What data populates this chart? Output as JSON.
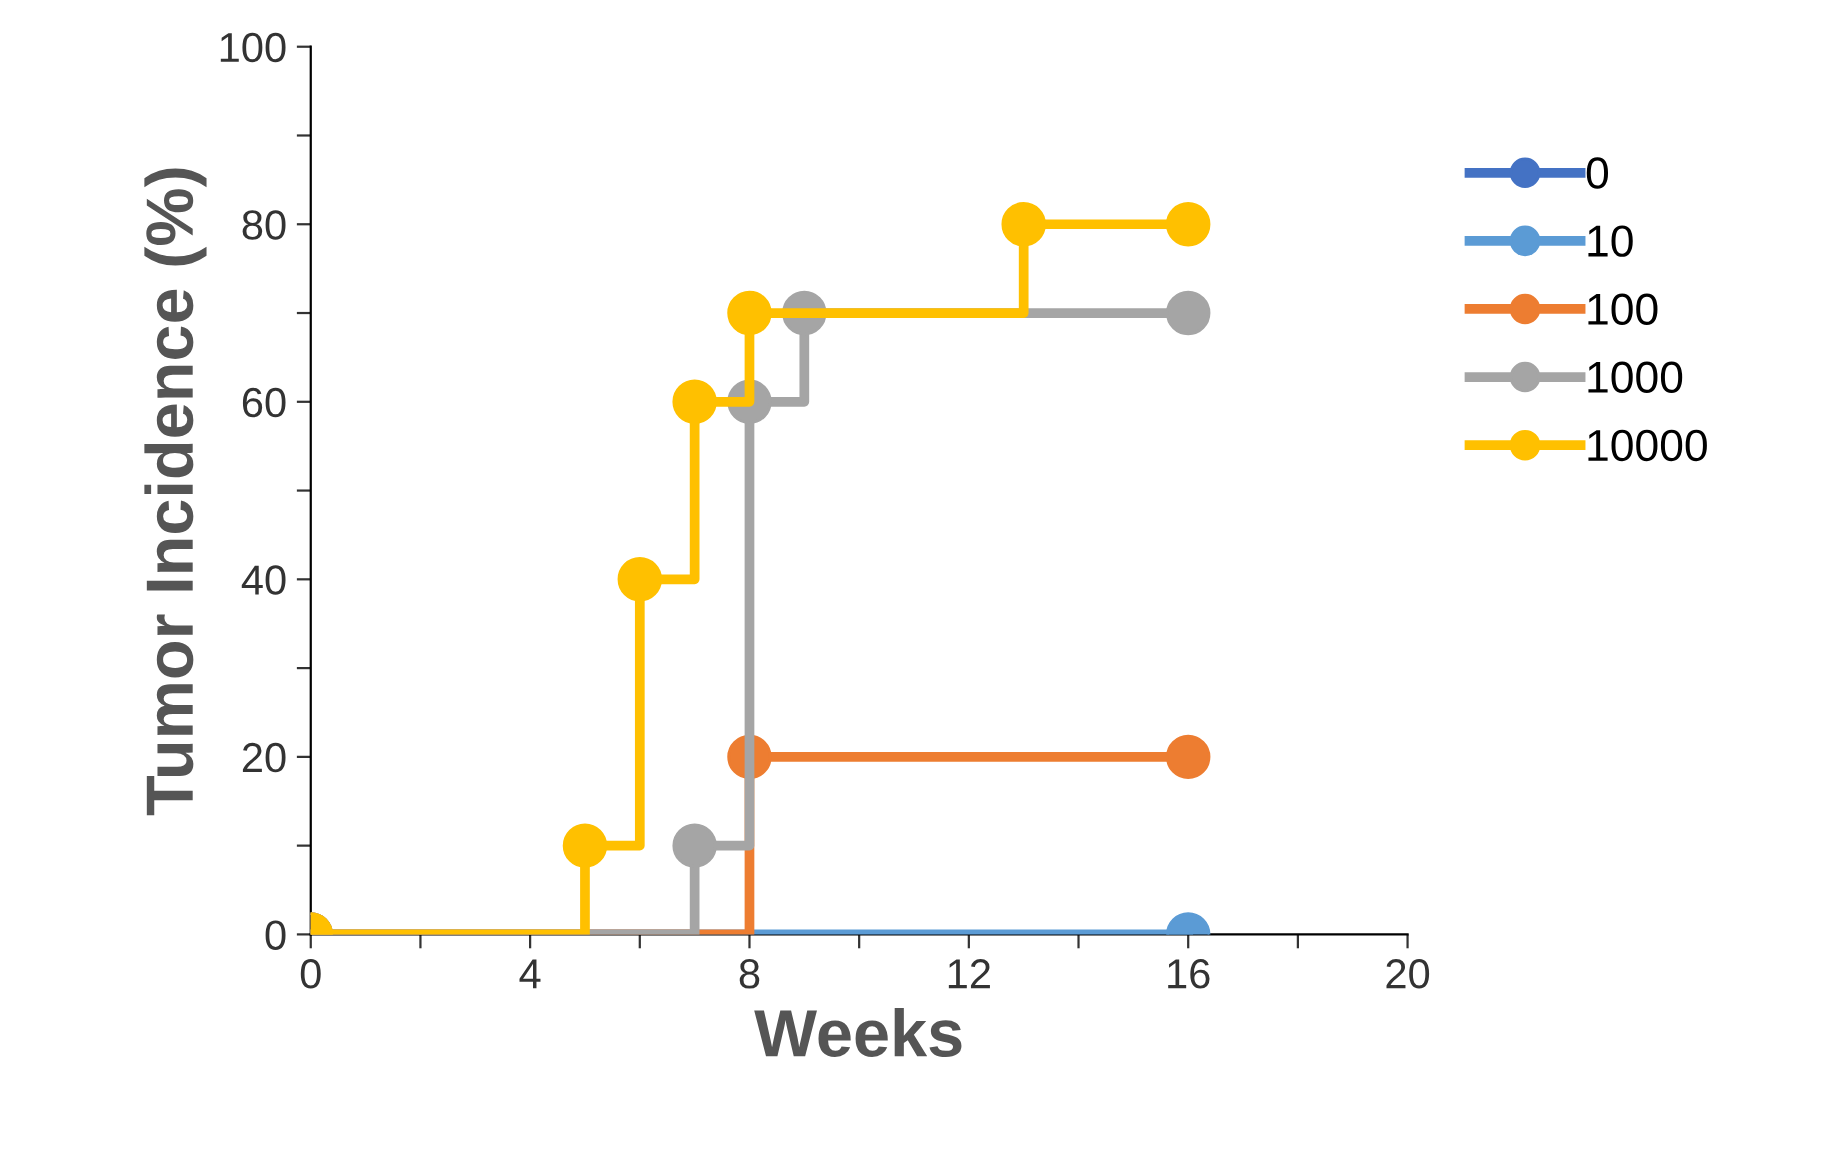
{
  "chart_data": {
    "type": "step",
    "xlabel": "Weeks",
    "ylabel": "Tumor Incidence (%)",
    "xlim": [
      0,
      20
    ],
    "ylim": [
      0,
      100
    ],
    "xticks": [
      0,
      {
        "value": 2,
        "label": null
      },
      4,
      {
        "value": 6,
        "label": null
      },
      8,
      {
        "value": 10,
        "label": null
      },
      12,
      {
        "value": 14,
        "label": null
      },
      16,
      {
        "value": 18,
        "label": null
      },
      20
    ],
    "yticks": [
      0,
      {
        "value": 10,
        "label": null
      },
      20,
      {
        "value": 30,
        "label": null
      },
      40,
      {
        "value": 50,
        "label": null
      },
      60,
      {
        "value": 70,
        "label": null
      },
      80,
      {
        "value": 90,
        "label": null
      },
      100
    ],
    "grid": false,
    "legend": "right",
    "marker": "circle",
    "line_style": "solid",
    "series": [
      {
        "name": "0",
        "color": "#4472c4"
      },
      {
        "name": "10",
        "color": "#5b9bd5",
        "x": [
          0,
          16
        ],
        "values": [
          0,
          0
        ]
      },
      {
        "name": "100",
        "color": "#ed7d31",
        "x": [
          0,
          8,
          16
        ],
        "values": [
          0,
          20,
          20
        ]
      },
      {
        "name": "1000",
        "color": "#a5a5a5",
        "x": [
          0,
          7,
          8,
          9,
          16
        ],
        "values": [
          0,
          10,
          60,
          70,
          70
        ]
      },
      {
        "name": "10000",
        "color": "#ffc000",
        "x": [
          0,
          5,
          6,
          7,
          8,
          13,
          16
        ],
        "values": [
          0,
          10,
          40,
          60,
          70,
          80,
          80
        ]
      }
    ]
  }
}
